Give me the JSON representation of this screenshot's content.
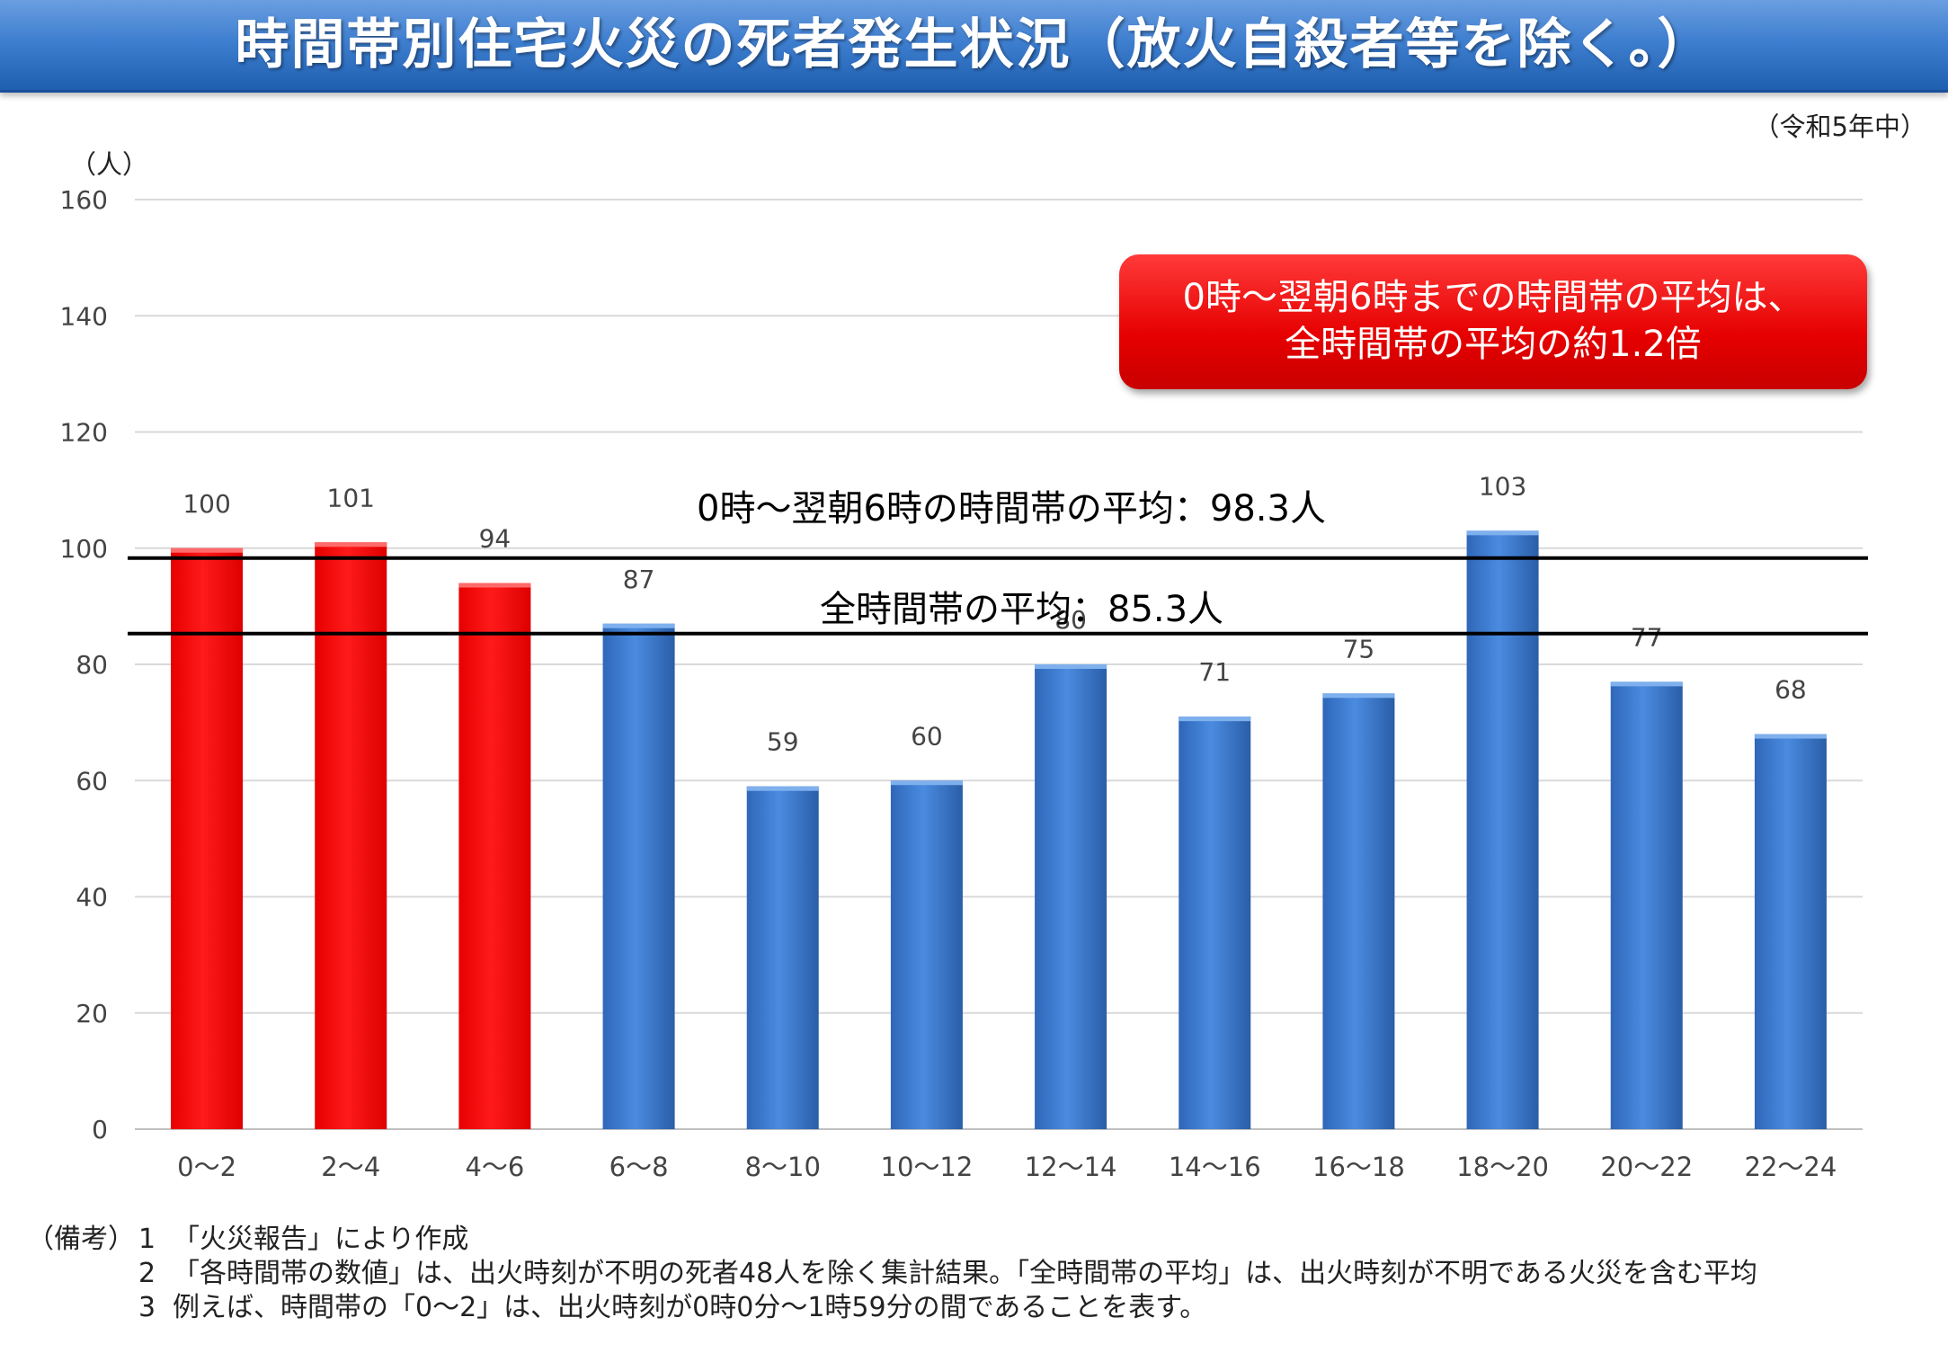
{
  "title": "時間帯別住宅火災の死者発生状況（放火自殺者等を除く。）",
  "period": "（令和5年中）",
  "unit": "（人）",
  "callout": {
    "line1": "0時～翌朝6時までの時間帯の平均は、",
    "line2": "全時間帯の平均の約1.2倍"
  },
  "averages": [
    {
      "label": "0時～翌朝6時の時間帯の平均：98.3人",
      "value": 98.3
    },
    {
      "label": "全時間帯の平均：85.3人",
      "value": 85.3
    }
  ],
  "notes": {
    "heading": "（備考）",
    "items": [
      {
        "num": "1",
        "text": "「火災報告」により作成"
      },
      {
        "num": "2",
        "text": "「各時間帯の数値」は、出火時刻が不明の死者48人を除く集計結果。「全時間帯の平均」は、出火時刻が不明である火災を含む平均"
      },
      {
        "num": "3",
        "text": "例えば、時間帯の「0～2」は、出火時刻が0時0分～1時59分の間であることを表す。"
      }
    ]
  },
  "chart_data": {
    "type": "bar",
    "categories": [
      "0～2",
      "2～4",
      "4～6",
      "6～8",
      "8～10",
      "10～12",
      "12～14",
      "14～16",
      "16～18",
      "18～20",
      "20～22",
      "22～24"
    ],
    "values": [
      100,
      101,
      94,
      87,
      59,
      60,
      80,
      71,
      75,
      103,
      77,
      68
    ],
    "highlight": [
      true,
      true,
      true,
      false,
      false,
      false,
      false,
      false,
      false,
      false,
      false,
      false
    ],
    "ylim": [
      0,
      160
    ],
    "yticks": [
      0,
      20,
      40,
      60,
      80,
      100,
      120,
      140,
      160
    ],
    "grid": true,
    "colors": {
      "highlight": "#ff0000",
      "normal": "#3a7bd5"
    }
  }
}
